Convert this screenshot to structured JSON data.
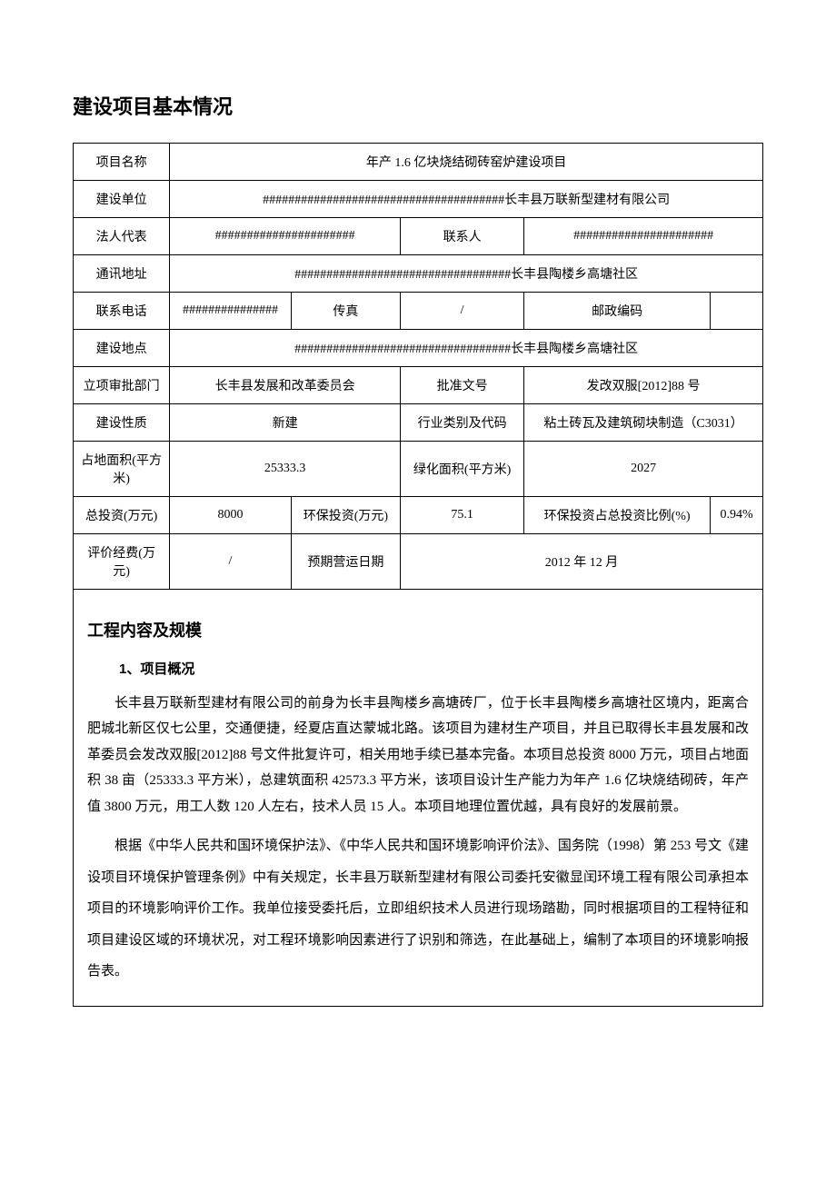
{
  "headings": {
    "main": "建设项目基本情况",
    "section2": "工程内容及规模",
    "sub1": "1、项目概况"
  },
  "table": {
    "row1": {
      "label": "项目名称",
      "value": "年产 1.6 亿块烧结砌砖窑炉建设项目"
    },
    "row2": {
      "label": "建设单位",
      "value": "######################################长丰县万联新型建材有限公司"
    },
    "row3": {
      "label1": "法人代表",
      "value1": "######################",
      "label2": "联系人",
      "value2": "######################"
    },
    "row4": {
      "label": "通讯地址",
      "value": "##################################长丰县陶楼乡高塘社区"
    },
    "row5": {
      "label1": "联系电话",
      "value1": "###############",
      "label2": "传真",
      "value2": "/",
      "label3": "邮政编码",
      "value3": ""
    },
    "row6": {
      "label": "建设地点",
      "value": "##################################长丰县陶楼乡高塘社区"
    },
    "row7": {
      "label1": "立项审批部门",
      "value1": "长丰县发展和改革委员会",
      "label2": "批准文号",
      "value2": "发改双服[2012]88 号"
    },
    "row8": {
      "label1": "建设性质",
      "value1": "新建",
      "label2": "行业类别及代码",
      "value2": "粘土砖瓦及建筑砌块制造（C3031）"
    },
    "row9": {
      "label1": "占地面积(平方米)",
      "value1": "25333.3",
      "label2": "绿化面积(平方米)",
      "value2": "2027"
    },
    "row10": {
      "label1": "总投资(万元)",
      "value1": "8000",
      "label2": "环保投资(万元)",
      "value2": "75.1",
      "label3": "环保投资占总投资比例(%)",
      "value3": "0.94%"
    },
    "row11": {
      "label1": "评价经费(万元)",
      "value1": "/",
      "label2": "预期营运日期",
      "value2": "2012 年 12 月"
    }
  },
  "paragraphs": {
    "p1": "长丰县万联新型建材有限公司的前身为长丰县陶楼乡高塘砖厂，位于长丰县陶楼乡高塘社区境内，距离合肥城北新区仅七公里，交通便捷，经夏店直达蒙城北路。该项目为建材生产项目，并且已取得长丰县发展和改革委员会发改双服[2012]88 号文件批复许可，相关用地手续已基本完备。本项目总投资 8000 万元，项目占地面积 38 亩（25333.3 平方米），总建筑面积 42573.3 平方米，该项目设计生产能力为年产 1.6 亿块烧结砌砖，年产值 3800 万元，用工人数 120 人左右，技术人员 15 人。本项目地理位置优越，具有良好的发展前景。",
    "p2": "根据《中华人民共和国环境保护法》、《中华人民共和国环境影响评价法》、国务院（1998）第 253 号文《建设项目环境保护管理条例》中有关规定，长丰县万联新型建材有限公司委托安徽显闰环境工程有限公司承担本项目的环境影响评价工作。我单位接受委托后，立即组织技术人员进行现场踏勘，同时根据项目的工程特征和项目建设区域的环境状况，对工程环境影响因素进行了识别和筛选，在此基础上，编制了本项目的环境影响报告表。"
  }
}
